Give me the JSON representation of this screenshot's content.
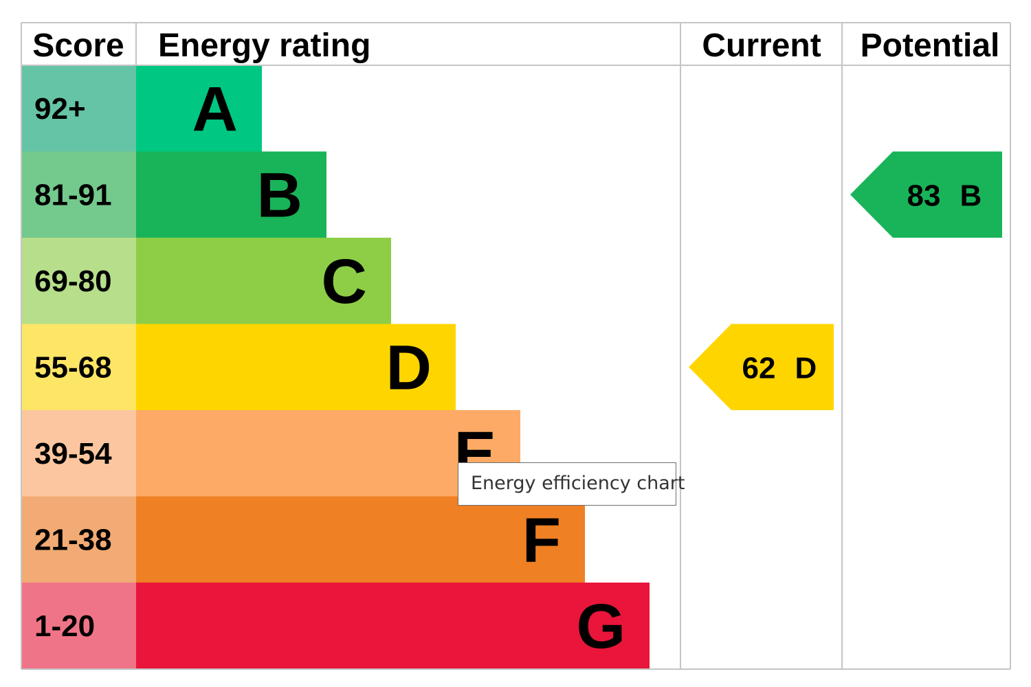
{
  "chart_data": {
    "type": "table",
    "headers": {
      "score": "Score",
      "rating": "Energy rating",
      "current": "Current",
      "potential": "Potential"
    },
    "bands": [
      {
        "score": "92+",
        "letter": "A",
        "color": "#00c781",
        "light": "#66c4a6"
      },
      {
        "score": "81-91",
        "letter": "B",
        "color": "#19b459",
        "light": "#74c98d"
      },
      {
        "score": "69-80",
        "letter": "C",
        "color": "#8dce46",
        "light": "#b7de8a"
      },
      {
        "score": "55-68",
        "letter": "D",
        "color": "#ffd500",
        "light": "#fde566"
      },
      {
        "score": "39-54",
        "letter": "E",
        "color": "#fcaa65",
        "light": "#fcc7a0"
      },
      {
        "score": "21-38",
        "letter": "F",
        "color": "#ef8023",
        "light": "#f2ab74"
      },
      {
        "score": "1-20",
        "letter": "G",
        "color": "#e9153b",
        "light": "#f07487"
      }
    ],
    "current": {
      "value": "62",
      "band": "D",
      "color": "#ffd500"
    },
    "potential": {
      "value": "83",
      "band": "B",
      "color": "#19b459"
    }
  },
  "tooltip": {
    "text": "Energy efficiency chart"
  }
}
